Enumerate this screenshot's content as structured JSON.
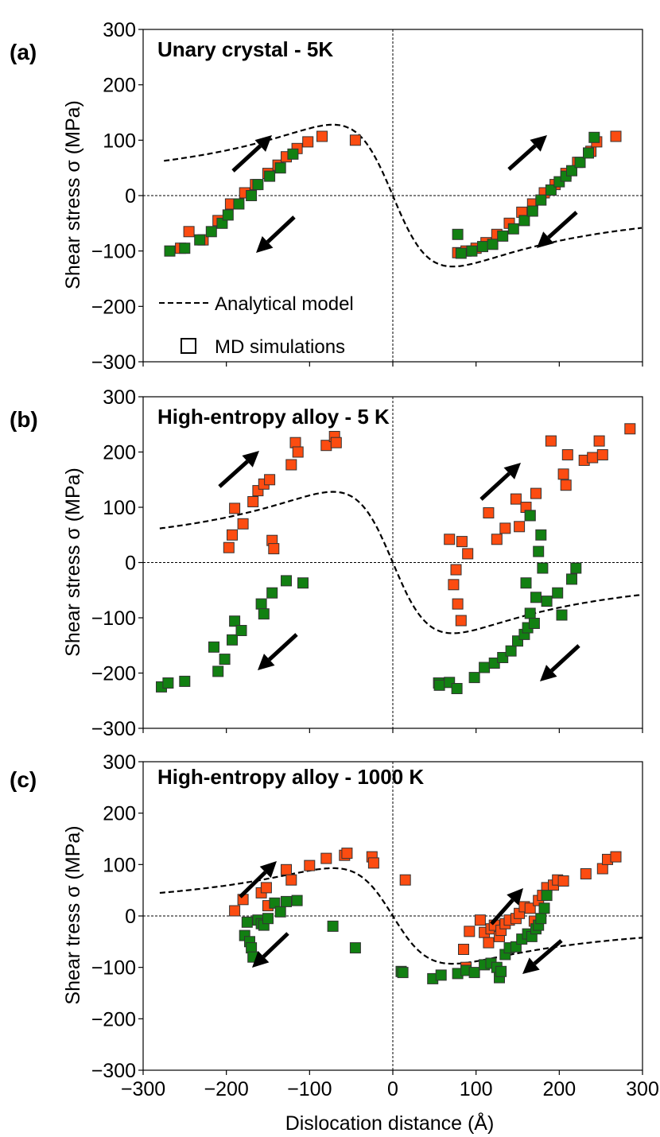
{
  "colors": {
    "sim_forward": "#fc4c11",
    "sim_backward": "#128012",
    "model": "#000000",
    "marker_edge": "#333333"
  },
  "chart_data": [
    {
      "type": "scatter",
      "panel_label": "(a)",
      "title": "Unary crystal - 5K",
      "ylabel": "Shear stress σ (MPa)",
      "xlabel": "",
      "xlim": [
        -300,
        300
      ],
      "ylim": [
        -300,
        300
      ],
      "xticks": [
        -300,
        -200,
        -100,
        0,
        100,
        200,
        300
      ],
      "yticks": [
        -300,
        -200,
        -100,
        0,
        100,
        200,
        300
      ],
      "ytick_labels": [
        "−300",
        "−200",
        "−100",
        "0",
        "100",
        "200",
        "300"
      ],
      "legend": {
        "model_label": "Analytical model",
        "sim_label": "MD simulations",
        "location": "lower-center"
      },
      "model": {
        "amplitude": 128,
        "peak_distance": 72,
        "asymptote": 150,
        "x_start": -275,
        "x_end": 300
      },
      "series": [
        {
          "name": "forward",
          "color_key": "sim_forward",
          "points": [
            [
              -255,
              -95
            ],
            [
              -245,
              -65
            ],
            [
              -228,
              -80
            ],
            [
              -210,
              -45
            ],
            [
              -195,
              -15
            ],
            [
              -178,
              5
            ],
            [
              -165,
              20
            ],
            [
              -150,
              40
            ],
            [
              -138,
              55
            ],
            [
              -128,
              70
            ],
            [
              -115,
              85
            ],
            [
              -102,
              97
            ],
            [
              -85,
              107
            ],
            [
              -45,
              100
            ],
            [
              78,
              -103
            ],
            [
              88,
              -100
            ],
            [
              100,
              -95
            ],
            [
              112,
              -85
            ],
            [
              125,
              -70
            ],
            [
              140,
              -50
            ],
            [
              155,
              -30
            ],
            [
              168,
              -15
            ],
            [
              182,
              5
            ],
            [
              195,
              20
            ],
            [
              208,
              40
            ],
            [
              222,
              60
            ],
            [
              238,
              80
            ],
            [
              245,
              97
            ],
            [
              268,
              107
            ]
          ]
        },
        {
          "name": "backward",
          "color_key": "sim_backward",
          "points": [
            [
              -268,
              -100
            ],
            [
              -250,
              -95
            ],
            [
              -232,
              -80
            ],
            [
              -218,
              -65
            ],
            [
              -205,
              -50
            ],
            [
              -198,
              -35
            ],
            [
              -185,
              -15
            ],
            [
              -170,
              0
            ],
            [
              -162,
              20
            ],
            [
              -148,
              35
            ],
            [
              -135,
              50
            ],
            [
              -120,
              75
            ],
            [
              78,
              -70
            ],
            [
              82,
              -104
            ],
            [
              95,
              -100
            ],
            [
              108,
              -92
            ],
            [
              120,
              -88
            ],
            [
              132,
              -73
            ],
            [
              145,
              -60
            ],
            [
              158,
              -45
            ],
            [
              168,
              -28
            ],
            [
              178,
              -8
            ],
            [
              190,
              10
            ],
            [
              200,
              25
            ],
            [
              208,
              35
            ],
            [
              215,
              45
            ],
            [
              225,
              60
            ],
            [
              235,
              77
            ],
            [
              242,
              105
            ]
          ]
        }
      ]
    },
    {
      "type": "scatter",
      "panel_label": "(b)",
      "title": "High-entropy alloy - 5 K",
      "ylabel": "Shear stress σ (MPa)",
      "xlabel": "",
      "xlim": [
        -300,
        300
      ],
      "ylim": [
        -300,
        300
      ],
      "xticks": [
        -300,
        -200,
        -100,
        0,
        100,
        200,
        300
      ],
      "yticks": [
        -300,
        -200,
        -100,
        0,
        100,
        200,
        300
      ],
      "ytick_labels": [
        "−300",
        "−200",
        "−100",
        "0",
        "100",
        "200",
        "300"
      ],
      "model": {
        "amplitude": 128,
        "peak_distance": 72,
        "asymptote": 150,
        "x_start": -280,
        "x_end": 300
      },
      "series": [
        {
          "name": "forward",
          "color_key": "sim_forward",
          "points": [
            [
              -197,
              27
            ],
            [
              -193,
              50
            ],
            [
              -190,
              98
            ],
            [
              -180,
              70
            ],
            [
              -168,
              110
            ],
            [
              -162,
              130
            ],
            [
              -155,
              142
            ],
            [
              -148,
              150
            ],
            [
              -145,
              40
            ],
            [
              -143,
              25
            ],
            [
              -122,
              177
            ],
            [
              -117,
              217
            ],
            [
              -114,
              200
            ],
            [
              -80,
              212
            ],
            [
              -70,
              228
            ],
            [
              -68,
              217
            ],
            [
              68,
              42
            ],
            [
              73,
              -40
            ],
            [
              76,
              -13
            ],
            [
              78,
              -75
            ],
            [
              82,
              -105
            ],
            [
              83,
              38
            ],
            [
              90,
              16
            ],
            [
              115,
              90
            ],
            [
              125,
              42
            ],
            [
              135,
              62
            ],
            [
              148,
              115
            ],
            [
              152,
              65
            ],
            [
              160,
              100
            ],
            [
              165,
              85
            ],
            [
              172,
              125
            ],
            [
              190,
              220
            ],
            [
              205,
              160
            ],
            [
              208,
              140
            ],
            [
              210,
              195
            ],
            [
              230,
              185
            ],
            [
              240,
              190
            ],
            [
              248,
              220
            ],
            [
              252,
              195
            ],
            [
              285,
              242
            ]
          ]
        },
        {
          "name": "backward",
          "color_key": "sim_backward",
          "points": [
            [
              -278,
              -225
            ],
            [
              -270,
              -218
            ],
            [
              -250,
              -215
            ],
            [
              -215,
              -153
            ],
            [
              -210,
              -197
            ],
            [
              -202,
              -175
            ],
            [
              -193,
              -140
            ],
            [
              -190,
              -106
            ],
            [
              -182,
              -123
            ],
            [
              -158,
              -75
            ],
            [
              -155,
              -93
            ],
            [
              -145,
              -55
            ],
            [
              -128,
              -33
            ],
            [
              -108,
              -37
            ],
            [
              55,
              -218
            ],
            [
              56,
              -222
            ],
            [
              68,
              -217
            ],
            [
              77,
              -228
            ],
            [
              98,
              -208
            ],
            [
              110,
              -190
            ],
            [
              122,
              -182
            ],
            [
              132,
              -172
            ],
            [
              142,
              -160
            ],
            [
              150,
              -142
            ],
            [
              158,
              -130
            ],
            [
              162,
              -118
            ],
            [
              165,
              -92
            ],
            [
              160,
              -37
            ],
            [
              165,
              85
            ],
            [
              170,
              -110
            ],
            [
              172,
              -63
            ],
            [
              175,
              20
            ],
            [
              178,
              50
            ],
            [
              180,
              -10
            ],
            [
              185,
              -70
            ],
            [
              198,
              -55
            ],
            [
              203,
              -95
            ],
            [
              215,
              -30
            ],
            [
              220,
              -10
            ]
          ]
        }
      ]
    },
    {
      "type": "scatter",
      "panel_label": "(c)",
      "title": "High-entropy alloy - 1000 K",
      "ylabel": "Shear tress σ (MPa)",
      "xlabel": "Dislocation distance (Å)",
      "xlim": [
        -300,
        300
      ],
      "ylim": [
        -300,
        300
      ],
      "xticks": [
        -300,
        -200,
        -100,
        0,
        100,
        200,
        300
      ],
      "xtick_labels": [
        "−300",
        "−200",
        "−100",
        "0",
        "100",
        "200",
        "300"
      ],
      "yticks": [
        -300,
        -200,
        -100,
        0,
        100,
        200,
        300
      ],
      "ytick_labels": [
        "−300",
        "−200",
        "−100",
        "0",
        "100",
        "200",
        "300"
      ],
      "model": {
        "amplitude": 93,
        "peak_distance": 72,
        "asymptote": 110,
        "x_start": -280,
        "x_end": 300
      },
      "series": [
        {
          "name": "forward",
          "color_key": "sim_forward",
          "points": [
            [
              -190,
              10
            ],
            [
              -180,
              32
            ],
            [
              -158,
              45
            ],
            [
              -152,
              55
            ],
            [
              -150,
              20
            ],
            [
              -128,
              90
            ],
            [
              -122,
              70
            ],
            [
              -100,
              98
            ],
            [
              -80,
              112
            ],
            [
              -58,
              118
            ],
            [
              -55,
              122
            ],
            [
              -25,
              115
            ],
            [
              -23,
              103
            ],
            [
              15,
              70
            ],
            [
              85,
              -65
            ],
            [
              88,
              -100
            ],
            [
              92,
              -30
            ],
            [
              105,
              -8
            ],
            [
              110,
              -32
            ],
            [
              115,
              -52
            ],
            [
              118,
              -25
            ],
            [
              122,
              -18
            ],
            [
              128,
              -40
            ],
            [
              130,
              -28
            ],
            [
              135,
              -15
            ],
            [
              140,
              -8
            ],
            [
              148,
              -5
            ],
            [
              152,
              5
            ],
            [
              158,
              18
            ],
            [
              165,
              15
            ],
            [
              170,
              -10
            ],
            [
              175,
              30
            ],
            [
              180,
              40
            ],
            [
              185,
              55
            ],
            [
              193,
              60
            ],
            [
              198,
              70
            ],
            [
              205,
              68
            ],
            [
              232,
              82
            ],
            [
              252,
              92
            ],
            [
              258,
              110
            ],
            [
              268,
              115
            ]
          ]
        },
        {
          "name": "backward",
          "color_key": "sim_backward",
          "points": [
            [
              -175,
              -12
            ],
            [
              -178,
              -38
            ],
            [
              -172,
              -50
            ],
            [
              -170,
              -62
            ],
            [
              -168,
              -80
            ],
            [
              -162,
              -8
            ],
            [
              -158,
              -15
            ],
            [
              -155,
              -18
            ],
            [
              -150,
              -5
            ],
            [
              -142,
              25
            ],
            [
              -135,
              8
            ],
            [
              -128,
              28
            ],
            [
              -115,
              30
            ],
            [
              -72,
              -20
            ],
            [
              -45,
              -62
            ],
            [
              10,
              -108
            ],
            [
              12,
              -110
            ],
            [
              48,
              -122
            ],
            [
              58,
              -115
            ],
            [
              78,
              -112
            ],
            [
              88,
              -106
            ],
            [
              98,
              -110
            ],
            [
              110,
              -95
            ],
            [
              118,
              -92
            ],
            [
              125,
              -100
            ],
            [
              128,
              -120
            ],
            [
              130,
              -108
            ],
            [
              135,
              -75
            ],
            [
              140,
              -62
            ],
            [
              148,
              -60
            ],
            [
              155,
              -45
            ],
            [
              162,
              -35
            ],
            [
              167,
              -40
            ],
            [
              172,
              -25
            ],
            [
              175,
              -18
            ],
            [
              178,
              -5
            ],
            [
              182,
              15
            ],
            [
              185,
              40
            ]
          ]
        }
      ]
    }
  ]
}
